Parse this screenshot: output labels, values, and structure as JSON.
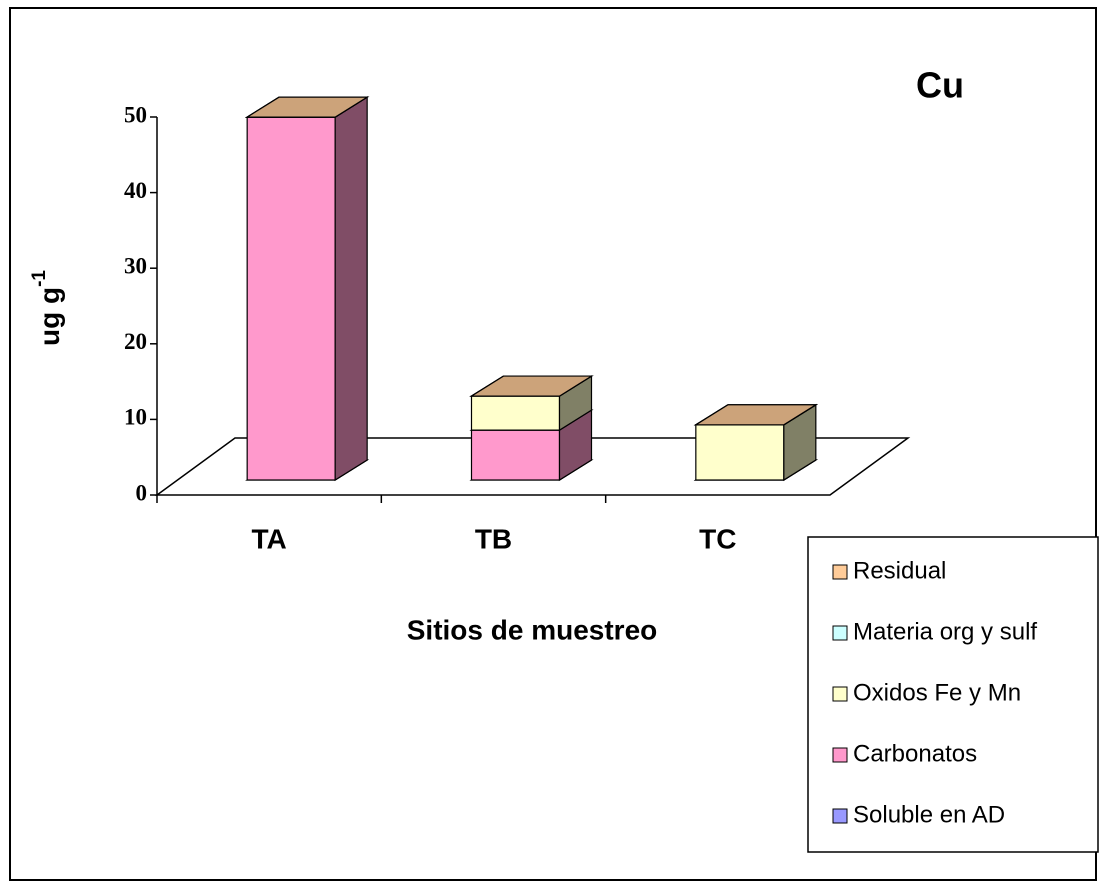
{
  "chart_data": {
    "type": "bar3d_stacked",
    "title": "Cu",
    "ylabel": "ug g",
    "ylabel_superscript": "-1",
    "xlabel": "Sitios de muestreo",
    "categories": [
      "TA",
      "TB",
      "TC"
    ],
    "series": [
      {
        "name": "Soluble en AD",
        "color": "#9999ff",
        "values": [
          0,
          0,
          0
        ]
      },
      {
        "name": "Carbonatos",
        "color": "#ff99cc",
        "values": [
          48,
          6.6,
          0
        ]
      },
      {
        "name": "Oxidos Fe y Mn",
        "color": "#ffffcc",
        "values": [
          0,
          4.5,
          7.3
        ]
      },
      {
        "name": "Materia org y sulf",
        "color": "#ccffff",
        "values": [
          0,
          0,
          0
        ]
      },
      {
        "name": "Residual",
        "color": "#ffcc99",
        "values": [
          0,
          0,
          0
        ]
      }
    ],
    "stacked": true,
    "ylim": [
      0,
      50
    ],
    "yticks": [
      0,
      10,
      20,
      30,
      40,
      50
    ],
    "legend": "bottom-right"
  }
}
